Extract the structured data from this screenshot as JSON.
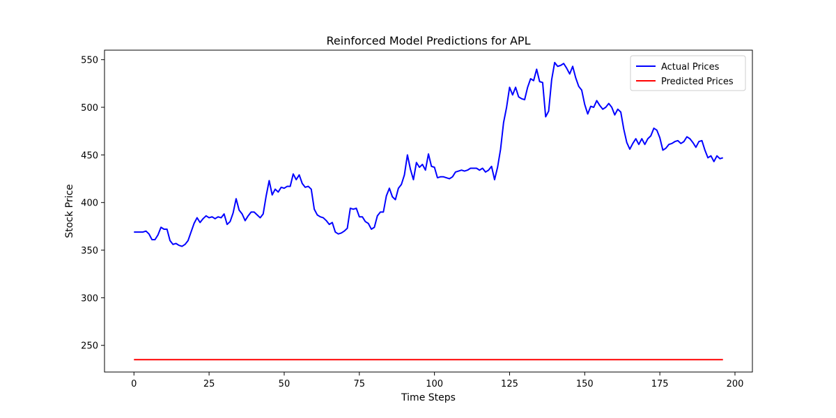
{
  "chart_data": {
    "type": "line",
    "title": "Reinforced Model Predictions for APL",
    "xlabel": "Time Steps",
    "ylabel": "Stock Price",
    "xlim": [
      -9.8,
      205.8
    ],
    "ylim": [
      222,
      560
    ],
    "xticks": [
      0,
      25,
      50,
      75,
      100,
      125,
      150,
      175,
      200
    ],
    "yticks": [
      250,
      300,
      350,
      400,
      450,
      500,
      550
    ],
    "grid": false,
    "legend_position": "upper right",
    "series": [
      {
        "name": "Actual Prices",
        "color": "#0000ff",
        "x_start": 0,
        "values": [
          369,
          369,
          369,
          369,
          370,
          367,
          361,
          361,
          366,
          374,
          372,
          372,
          360,
          356,
          357,
          355,
          354,
          356,
          360,
          369,
          378,
          384,
          379,
          383,
          386,
          384,
          385,
          383,
          385,
          384,
          388,
          377,
          380,
          389,
          404,
          392,
          388,
          381,
          386,
          390,
          390,
          387,
          384,
          388,
          407,
          423,
          408,
          414,
          411,
          416,
          415,
          417,
          417,
          430,
          424,
          429,
          420,
          416,
          417,
          414,
          393,
          387,
          385,
          384,
          381,
          377,
          379,
          369,
          367,
          368,
          370,
          373,
          394,
          393,
          394,
          385,
          385,
          380,
          378,
          372,
          374,
          386,
          390,
          390,
          407,
          415,
          406,
          403,
          415,
          419,
          429,
          450,
          435,
          424,
          442,
          437,
          440,
          434,
          451,
          438,
          437,
          426,
          427,
          427,
          426,
          425,
          427,
          432,
          433,
          434,
          433,
          434,
          436,
          436,
          436,
          434,
          436,
          432,
          434,
          438,
          424,
          437,
          456,
          484,
          500,
          521,
          513,
          521,
          511,
          509,
          508,
          521,
          530,
          528,
          540,
          527,
          526,
          490,
          496,
          529,
          547,
          543,
          544,
          546,
          541,
          535,
          543,
          531,
          522,
          518,
          503,
          493,
          501,
          500,
          507,
          502,
          498,
          500,
          504,
          500,
          492,
          498,
          495,
          477,
          463,
          456,
          462,
          467,
          461,
          467,
          461,
          467,
          470,
          478,
          476,
          468,
          455,
          457,
          461,
          462,
          464,
          465,
          462,
          464,
          469,
          467,
          463,
          458,
          464,
          465,
          455,
          447,
          449,
          443,
          449,
          446,
          447
        ]
      },
      {
        "name": "Predicted Prices",
        "color": "#ff0000",
        "x_start": 0,
        "values": [
          235,
          235
        ],
        "x": [
          0,
          196
        ]
      }
    ]
  }
}
